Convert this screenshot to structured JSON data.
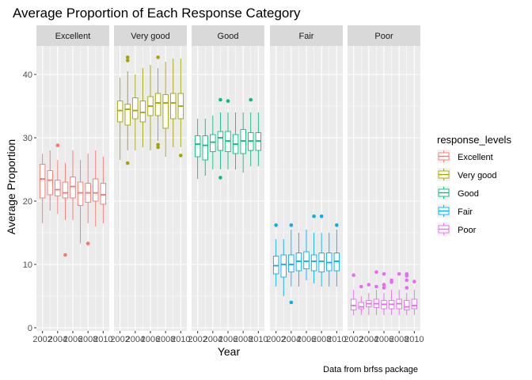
{
  "chart_data": {
    "type": "boxplot",
    "title": "Average Proportion of Each Response Category",
    "xlabel": "Year",
    "ylabel": "Average Proportion",
    "caption": "Data from brfss package",
    "ylim": [
      0,
      45
    ],
    "y_ticks": [
      0,
      10,
      20,
      30,
      40
    ],
    "x_ticks": [
      2002,
      2004,
      2006,
      2008,
      2010
    ],
    "x_range": [
      2001.2,
      2010.8
    ],
    "years": [
      2002,
      2003,
      2004,
      2005,
      2006,
      2007,
      2008,
      2009,
      2010
    ],
    "grid": true,
    "legend": {
      "title": "response_levels",
      "position": "right",
      "entries": [
        "Excellent",
        "Very good",
        "Good",
        "Fair",
        "Poor"
      ]
    },
    "colors": {
      "Excellent": "#F8766D",
      "Very good": "#A3A500",
      "Good": "#00BF7D",
      "Fair": "#00B0F6",
      "Poor": "#E76BF3"
    },
    "panels": [
      {
        "name": "Excellent",
        "boxes": [
          {
            "year": 2002,
            "q1": 20.5,
            "median": 23.5,
            "q3": 25.8,
            "lo": 16.5,
            "hi": 27.5,
            "outliers": []
          },
          {
            "year": 2003,
            "q1": 21.0,
            "median": 23.3,
            "q3": 24.8,
            "lo": 18.5,
            "hi": 28.0,
            "outliers": []
          },
          {
            "year": 2004,
            "q1": 20.8,
            "median": 21.8,
            "q3": 23.3,
            "lo": 18.0,
            "hi": 26.5,
            "outliers": [
              28.8
            ]
          },
          {
            "year": 2005,
            "q1": 20.5,
            "median": 21.3,
            "q3": 23.0,
            "lo": 17.0,
            "hi": 26.0,
            "outliers": [
              11.5
            ]
          },
          {
            "year": 2006,
            "q1": 20.5,
            "median": 22.3,
            "q3": 23.8,
            "lo": 17.0,
            "hi": 28.0,
            "outliers": []
          },
          {
            "year": 2007,
            "q1": 19.3,
            "median": 21.3,
            "q3": 23.0,
            "lo": 13.3,
            "hi": 26.5,
            "outliers": []
          },
          {
            "year": 2008,
            "q1": 19.8,
            "median": 21.3,
            "q3": 22.8,
            "lo": 16.5,
            "hi": 27.5,
            "outliers": [
              13.3
            ]
          },
          {
            "year": 2009,
            "q1": 20.0,
            "median": 21.3,
            "q3": 23.5,
            "lo": 16.0,
            "hi": 28.0,
            "outliers": []
          },
          {
            "year": 2010,
            "q1": 19.5,
            "median": 21.0,
            "q3": 22.8,
            "lo": 16.5,
            "hi": 27.0,
            "outliers": []
          }
        ]
      },
      {
        "name": "Very good",
        "boxes": [
          {
            "year": 2002,
            "q1": 32.5,
            "median": 34.3,
            "q3": 35.8,
            "lo": 26.5,
            "hi": 39.5,
            "outliers": []
          },
          {
            "year": 2003,
            "q1": 32.0,
            "median": 34.5,
            "q3": 35.3,
            "lo": 28.0,
            "hi": 40.5,
            "outliers": [
              42.7,
              42.2,
              26.0
            ]
          },
          {
            "year": 2004,
            "q1": 33.0,
            "median": 34.3,
            "q3": 36.3,
            "lo": 28.0,
            "hi": 40.0,
            "outliers": []
          },
          {
            "year": 2005,
            "q1": 32.5,
            "median": 34.0,
            "q3": 35.8,
            "lo": 28.5,
            "hi": 41.0,
            "outliers": []
          },
          {
            "year": 2006,
            "q1": 33.5,
            "median": 35.0,
            "q3": 36.5,
            "lo": 28.0,
            "hi": 41.5,
            "outliers": []
          },
          {
            "year": 2007,
            "q1": 33.5,
            "median": 35.5,
            "q3": 37.0,
            "lo": 29.5,
            "hi": 41.0,
            "outliers": [
              42.7,
              28.9,
              28.5
            ]
          },
          {
            "year": 2008,
            "q1": 31.5,
            "median": 35.5,
            "q3": 36.8,
            "lo": 27.0,
            "hi": 42.0,
            "outliers": []
          },
          {
            "year": 2009,
            "q1": 33.0,
            "median": 35.5,
            "q3": 37.0,
            "lo": 28.5,
            "hi": 42.5,
            "outliers": []
          },
          {
            "year": 2010,
            "q1": 33.0,
            "median": 35.0,
            "q3": 37.0,
            "lo": 28.5,
            "hi": 42.5,
            "outliers": [
              27.2
            ]
          }
        ]
      },
      {
        "name": "Good",
        "boxes": [
          {
            "year": 2002,
            "q1": 27.0,
            "median": 29.0,
            "q3": 30.3,
            "lo": 23.5,
            "hi": 33.0,
            "outliers": []
          },
          {
            "year": 2003,
            "q1": 26.5,
            "median": 28.8,
            "q3": 30.3,
            "lo": 24.0,
            "hi": 33.0,
            "outliers": []
          },
          {
            "year": 2004,
            "q1": 27.8,
            "median": 29.3,
            "q3": 30.5,
            "lo": 25.0,
            "hi": 33.5,
            "outliers": []
          },
          {
            "year": 2005,
            "q1": 28.0,
            "median": 30.0,
            "q3": 31.0,
            "lo": 25.0,
            "hi": 34.0,
            "outliers": [
              36.0,
              23.7
            ]
          },
          {
            "year": 2006,
            "q1": 27.8,
            "median": 29.5,
            "q3": 31.0,
            "lo": 25.0,
            "hi": 34.0,
            "outliers": [
              35.8
            ]
          },
          {
            "year": 2007,
            "q1": 27.5,
            "median": 29.0,
            "q3": 30.5,
            "lo": 25.0,
            "hi": 34.0,
            "outliers": []
          },
          {
            "year": 2008,
            "q1": 27.5,
            "median": 29.5,
            "q3": 31.3,
            "lo": 24.5,
            "hi": 34.0,
            "outliers": []
          },
          {
            "year": 2009,
            "q1": 28.0,
            "median": 29.5,
            "q3": 30.8,
            "lo": 25.5,
            "hi": 34.0,
            "outliers": [
              36.0
            ]
          },
          {
            "year": 2010,
            "q1": 28.0,
            "median": 29.5,
            "q3": 30.8,
            "lo": 25.5,
            "hi": 34.0,
            "outliers": []
          }
        ]
      },
      {
        "name": "Fair",
        "boxes": [
          {
            "year": 2002,
            "q1": 8.5,
            "median": 9.8,
            "q3": 11.3,
            "lo": 6.5,
            "hi": 14.0,
            "outliers": [
              16.2
            ]
          },
          {
            "year": 2003,
            "q1": 8.0,
            "median": 10.0,
            "q3": 11.5,
            "lo": 5.0,
            "hi": 14.0,
            "outliers": []
          },
          {
            "year": 2004,
            "q1": 8.8,
            "median": 10.0,
            "q3": 11.5,
            "lo": 6.5,
            "hi": 15.5,
            "outliers": [
              16.2,
              4.0
            ]
          },
          {
            "year": 2005,
            "q1": 9.0,
            "median": 10.5,
            "q3": 11.8,
            "lo": 6.5,
            "hi": 15.0,
            "outliers": []
          },
          {
            "year": 2006,
            "q1": 9.3,
            "median": 10.5,
            "q3": 12.0,
            "lo": 7.5,
            "hi": 15.5,
            "outliers": []
          },
          {
            "year": 2007,
            "q1": 9.0,
            "median": 10.5,
            "q3": 11.5,
            "lo": 7.0,
            "hi": 15.0,
            "outliers": [
              17.6
            ]
          },
          {
            "year": 2008,
            "q1": 8.8,
            "median": 10.5,
            "q3": 11.8,
            "lo": 6.5,
            "hi": 15.0,
            "outliers": [
              17.6
            ]
          },
          {
            "year": 2009,
            "q1": 9.0,
            "median": 10.3,
            "q3": 11.8,
            "lo": 6.5,
            "hi": 15.0,
            "outliers": []
          },
          {
            "year": 2010,
            "q1": 9.0,
            "median": 10.5,
            "q3": 11.8,
            "lo": 6.5,
            "hi": 15.5,
            "outliers": [
              16.2
            ]
          }
        ]
      },
      {
        "name": "Poor",
        "boxes": [
          {
            "year": 2002,
            "q1": 2.8,
            "median": 3.5,
            "q3": 4.5,
            "lo": 2.0,
            "hi": 6.0,
            "outliers": [
              8.3
            ]
          },
          {
            "year": 2003,
            "q1": 3.0,
            "median": 3.3,
            "q3": 4.0,
            "lo": 2.0,
            "hi": 5.0,
            "outliers": [
              6.5
            ]
          },
          {
            "year": 2004,
            "q1": 3.3,
            "median": 3.8,
            "q3": 4.3,
            "lo": 2.0,
            "hi": 5.5,
            "outliers": [
              6.8
            ]
          },
          {
            "year": 2005,
            "q1": 3.2,
            "median": 3.8,
            "q3": 4.5,
            "lo": 2.0,
            "hi": 6.0,
            "outliers": [
              8.8,
              6.5
            ]
          },
          {
            "year": 2006,
            "q1": 3.0,
            "median": 3.7,
            "q3": 4.3,
            "lo": 2.0,
            "hi": 5.5,
            "outliers": [
              8.5,
              6.8,
              6.3
            ]
          },
          {
            "year": 2007,
            "q1": 3.0,
            "median": 3.7,
            "q3": 4.3,
            "lo": 2.0,
            "hi": 6.0,
            "outliers": [
              7.5,
              7.2
            ]
          },
          {
            "year": 2008,
            "q1": 3.0,
            "median": 3.8,
            "q3": 4.5,
            "lo": 2.0,
            "hi": 6.0,
            "outliers": [
              8.5
            ]
          },
          {
            "year": 2009,
            "q1": 2.8,
            "median": 3.3,
            "q3": 4.3,
            "lo": 2.0,
            "hi": 5.5,
            "outliers": [
              8.5,
              8.2,
              7.5,
              6.3
            ]
          },
          {
            "year": 2010,
            "q1": 3.0,
            "median": 3.5,
            "q3": 4.5,
            "lo": 2.0,
            "hi": 6.0,
            "outliers": [
              7.3
            ]
          }
        ]
      }
    ]
  }
}
